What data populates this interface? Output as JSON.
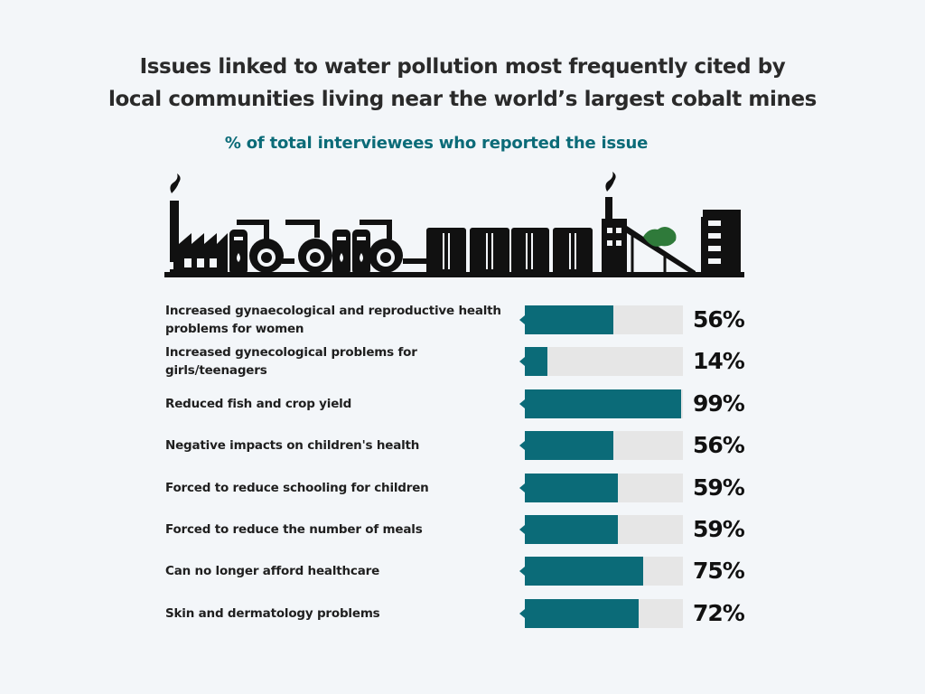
{
  "colors": {
    "background": "#f3f6f9",
    "accent": "#0b6b78",
    "track": "#e6e6e6",
    "skyline": "#111111",
    "foliage": "#2f7a3a"
  },
  "illustration": "industrial-skyline",
  "chart_data": {
    "type": "bar",
    "orientation": "horizontal",
    "title": "Issues linked to water pollution most frequently cited by local communities living near the world’s largest cobalt mines",
    "title_lines": [
      "Issues linked to water pollution most frequently cited by",
      "local communities living near the world’s largest cobalt mines"
    ],
    "subtitle": "% of total interviewees who reported the issue",
    "xlim": [
      0,
      100
    ],
    "categories": [
      "Increased gynaecological and reproductive health problems for women",
      "Increased gynecological problems for girls/teenagers",
      "Reduced fish and crop yield",
      "Negative impacts on children's health",
      "Forced to reduce schooling for children",
      "Forced to reduce the number of meals",
      "Can no longer afford healthcare",
      "Skin and dermatology problems"
    ],
    "values": [
      56,
      14,
      99,
      56,
      59,
      59,
      75,
      72
    ],
    "value_labels": [
      "56%",
      "14%",
      "99%",
      "56%",
      "59%",
      "59%",
      "75%",
      "72%"
    ]
  }
}
